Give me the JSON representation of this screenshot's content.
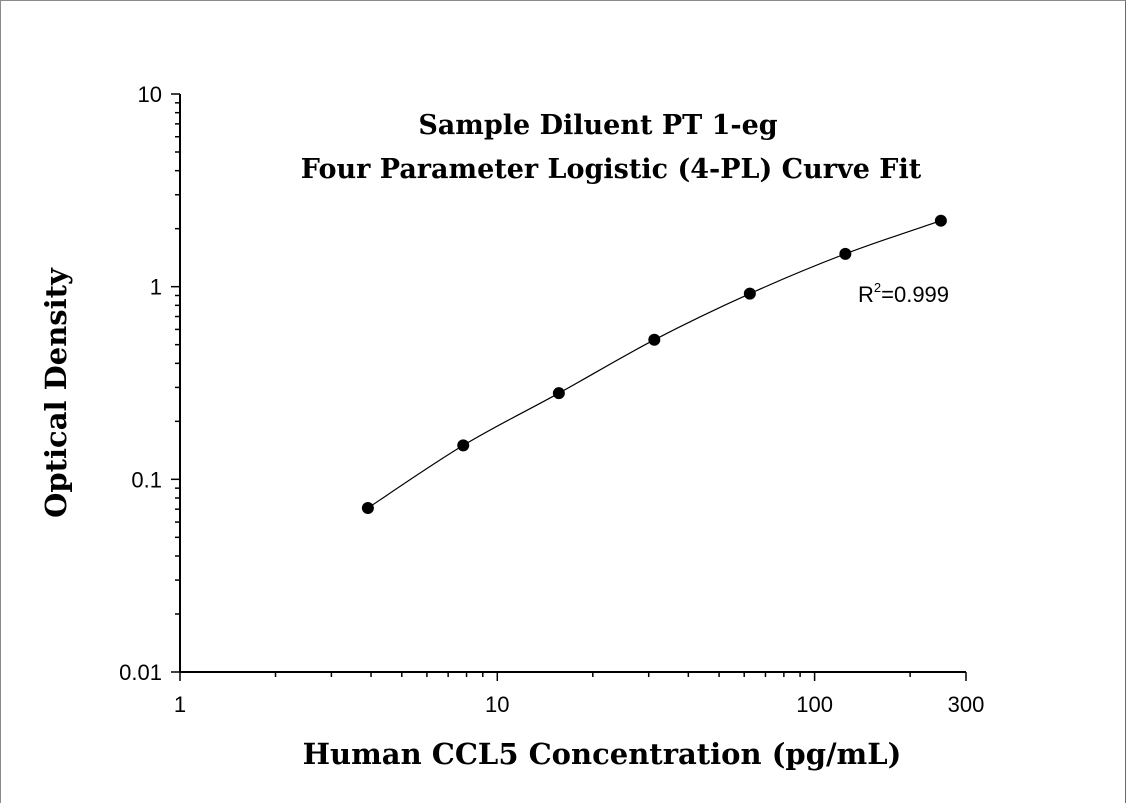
{
  "chart_data": {
    "type": "scatter",
    "title": "Sample Diluent PT 1-eg",
    "subtitle": "Four Parameter Logistic (4-PL) Curve Fit",
    "xlabel": "Human CCL5 Concentration (pg/mL)",
    "ylabel": "Optical Density",
    "x_scale": "log",
    "y_scale": "log",
    "xlim": [
      1,
      300
    ],
    "ylim": [
      0.01,
      10
    ],
    "x_ticks": [
      {
        "value": 1,
        "label": "1"
      },
      {
        "value": 10,
        "label": "10"
      },
      {
        "value": 100,
        "label": "100"
      },
      {
        "value": 300,
        "label": "300"
      }
    ],
    "y_ticks": [
      {
        "value": 0.01,
        "label": "0.01"
      },
      {
        "value": 0.1,
        "label": "0.1"
      },
      {
        "value": 1,
        "label": "1"
      },
      {
        "value": 10,
        "label": "10"
      }
    ],
    "grid": false,
    "series": [
      {
        "points": [
          {
            "x": 3.91,
            "y": 0.071
          },
          {
            "x": 7.81,
            "y": 0.15
          },
          {
            "x": 15.63,
            "y": 0.28
          },
          {
            "x": 31.25,
            "y": 0.53
          },
          {
            "x": 62.5,
            "y": 0.92
          },
          {
            "x": 125,
            "y": 1.48
          },
          {
            "x": 250,
            "y": 2.2
          }
        ],
        "fit": "4-PL"
      }
    ],
    "annotation": {
      "base": "R",
      "sup": "2",
      "rest": "=0.999"
    }
  }
}
